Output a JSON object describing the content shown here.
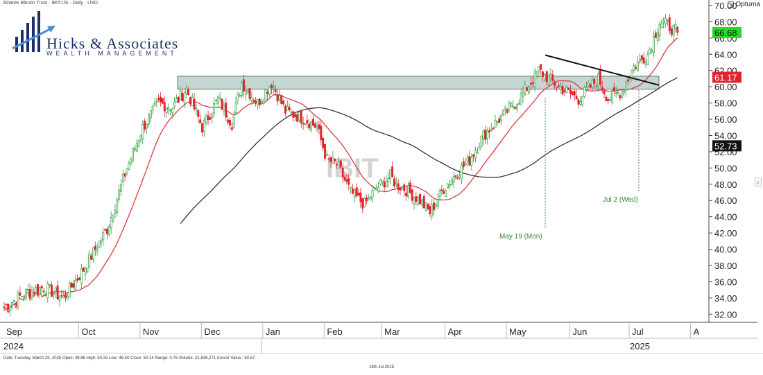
{
  "header": {
    "title": "iShares Bitcoin Trust · IBIT:US · Daily · USD",
    "brand": "Optuma"
  },
  "logo": {
    "name": "Hicks & Associates",
    "tagline": "WEALTH MANAGEMENT"
  },
  "watermark": "IBIT",
  "footer": {
    "info": "Date: Tuesday, March 25, 2025 Open: 49.86 High: 50.25 Low: 49.50 Close: 50.14 Range: 0.75 Volume: 21,846,271 Cursor Value : 50.87",
    "date": "18th Jul 2025"
  },
  "colors": {
    "up": "#2e9e3e",
    "down": "#e3232c",
    "ma_fast": "#e0383c",
    "ma_slow": "#333333",
    "zone": "#b9cfcd",
    "trendline": "#111111",
    "price_tag": "#22dd22",
    "ma_fast_tag": "#e3232c",
    "ma_slow_tag": "#111111"
  },
  "chart_data": {
    "type": "candlestick",
    "ylim": [
      31,
      70
    ],
    "y_ticks": [
      "32.00",
      "34.00",
      "36.00",
      "38.00",
      "40.00",
      "42.00",
      "44.00",
      "46.00",
      "48.00",
      "50.00",
      "52.00",
      "54.00",
      "56.00",
      "58.00",
      "60.00",
      "62.00",
      "64.00",
      "66.00",
      "68.00",
      "70.00"
    ],
    "months": [
      "Sep",
      "Oct",
      "Nov",
      "Dec",
      "Jan",
      "Feb",
      "Mar",
      "Apr",
      "May",
      "Jun",
      "Jul",
      "A"
    ],
    "years": [
      "2024",
      "2025"
    ],
    "price_tags": {
      "last_price": "66.68",
      "ma_fast": "61.17",
      "ma_slow": "52.73"
    },
    "annotations": [
      "May 19 (Mon)",
      "Jul 2 (Wed)"
    ],
    "resistance_zone": [
      59.7,
      61.3
    ],
    "series": [
      {
        "name": "Price",
        "kind": "candles"
      },
      {
        "name": "",
        "kind": "ma_fast"
      },
      {
        "name": "",
        "kind": "ma_slow"
      }
    ],
    "waypoints": [
      [
        0,
        32.9
      ],
      [
        12,
        34.8
      ],
      [
        20,
        35.3
      ],
      [
        30,
        34.0
      ],
      [
        40,
        37.5
      ],
      [
        52,
        42.5
      ],
      [
        62,
        50.0
      ],
      [
        70,
        55.0
      ],
      [
        78,
        58.0
      ],
      [
        85,
        57.5
      ],
      [
        92,
        59.7
      ],
      [
        100,
        55.0
      ],
      [
        108,
        58.5
      ],
      [
        115,
        55.5
      ],
      [
        120,
        60.5
      ],
      [
        128,
        58.0
      ],
      [
        135,
        60.5
      ],
      [
        142,
        57.0
      ],
      [
        152,
        56.0
      ],
      [
        158,
        55.0
      ],
      [
        163,
        51.0
      ],
      [
        168,
        50.5
      ],
      [
        175,
        47.0
      ],
      [
        182,
        45.5
      ],
      [
        188,
        47.5
      ],
      [
        195,
        49.0
      ],
      [
        198,
        48.0
      ],
      [
        202,
        47.5
      ],
      [
        210,
        46.0
      ],
      [
        215,
        44.5
      ],
      [
        222,
        47.5
      ],
      [
        228,
        49.2
      ],
      [
        235,
        51.0
      ],
      [
        242,
        54.0
      ],
      [
        250,
        56.0
      ],
      [
        260,
        58.5
      ],
      [
        270,
        62.0
      ],
      [
        280,
        60.0
      ],
      [
        290,
        58.5
      ],
      [
        300,
        61.0
      ],
      [
        305,
        58.5
      ],
      [
        312,
        59.5
      ],
      [
        318,
        62.5
      ],
      [
        325,
        64.0
      ],
      [
        331,
        68.0
      ],
      [
        335,
        67.6
      ],
      [
        340,
        66.68
      ]
    ]
  }
}
